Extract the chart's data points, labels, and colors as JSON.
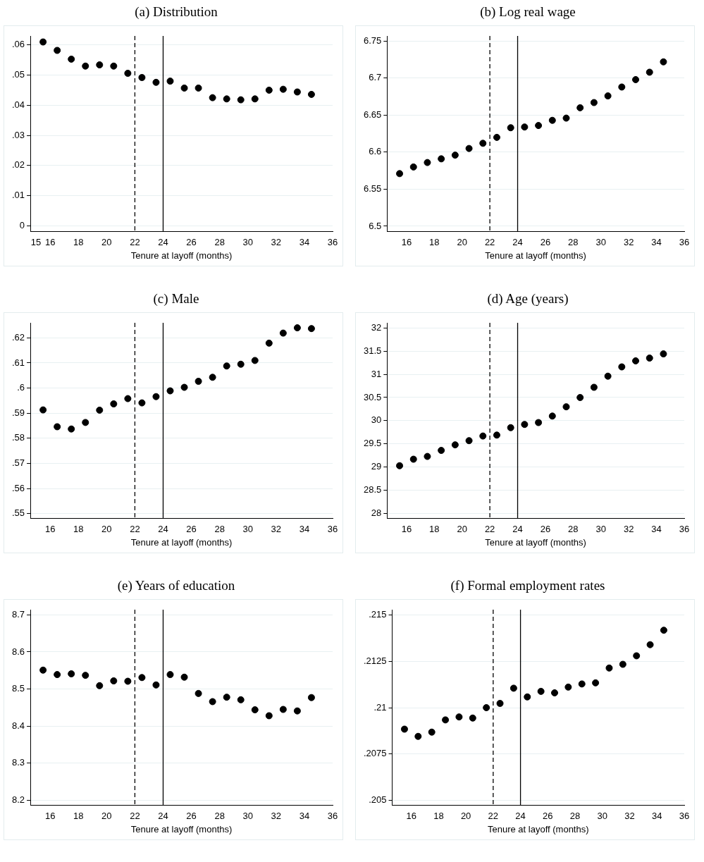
{
  "chart_data": [
    {
      "type": "scatter",
      "title": "(a) Distribution",
      "xlabel": "Tenure at layoff (months)",
      "x": [
        15.5,
        16.5,
        17.5,
        18.5,
        19.5,
        20.5,
        21.5,
        22.5,
        23.5,
        24.5,
        25.5,
        26.5,
        27.5,
        28.5,
        29.5,
        30.5,
        31.5,
        32.5,
        33.5,
        34.5
      ],
      "series": [
        {
          "color": "#000000",
          "values": [
            0.061,
            0.0582,
            0.0553,
            0.053,
            0.0534,
            0.053,
            0.0506,
            0.0492,
            0.0476,
            0.048,
            0.0457,
            0.0457,
            0.0425,
            0.0421,
            0.0418,
            0.0421,
            0.045,
            0.0453,
            0.0444,
            0.0436
          ]
        }
      ],
      "xlim": [
        14.6,
        36
      ],
      "xticks": [
        15,
        16,
        18,
        20,
        22,
        24,
        26,
        28,
        30,
        32,
        34,
        36
      ],
      "ylim": [
        -0.002,
        0.063
      ],
      "yticks": [
        {
          "value": 0,
          "label": "0"
        },
        {
          "value": 0.01,
          "label": ".01"
        },
        {
          "value": 0.02,
          "label": ".02"
        },
        {
          "value": 0.03,
          "label": ".03"
        },
        {
          "value": 0.04,
          "label": ".04"
        },
        {
          "value": 0.05,
          "label": ".05"
        },
        {
          "value": 0.06,
          "label": ".06"
        }
      ],
      "ref_lines": [
        {
          "axis": "x",
          "value": 22,
          "line_style": "dashed",
          "color": "#000000"
        },
        {
          "axis": "x",
          "value": 24,
          "line_style": "solid",
          "color": "#000000"
        }
      ],
      "grid": "y",
      "marker": "circle"
    },
    {
      "type": "scatter",
      "title": "(b) Log real wage",
      "xlabel": "Tenure at layoff (months)",
      "x": [
        15.5,
        16.5,
        17.5,
        18.5,
        19.5,
        20.5,
        21.5,
        22.5,
        23.5,
        24.5,
        25.5,
        26.5,
        27.5,
        28.5,
        29.5,
        30.5,
        31.5,
        32.5,
        33.5,
        34.5
      ],
      "series": [
        {
          "color": "#000000",
          "values": [
            6.571,
            6.58,
            6.586,
            6.591,
            6.596,
            6.605,
            6.612,
            6.62,
            6.633,
            6.634,
            6.636,
            6.643,
            6.646,
            6.66,
            6.667,
            6.676,
            6.688,
            6.698,
            6.708,
            6.722
          ]
        }
      ],
      "xlim": [
        14.6,
        36
      ],
      "xticks": [
        16,
        18,
        20,
        22,
        24,
        26,
        28,
        30,
        32,
        34,
        36
      ],
      "ylim": [
        6.4925,
        6.757
      ],
      "yticks": [
        6.5,
        6.55,
        6.6,
        6.65,
        6.7,
        6.75
      ],
      "ref_lines": [
        {
          "axis": "x",
          "value": 22,
          "line_style": "dashed",
          "color": "#000000"
        },
        {
          "axis": "x",
          "value": 24,
          "line_style": "solid",
          "color": "#000000"
        }
      ],
      "grid": "y",
      "marker": "circle"
    },
    {
      "type": "scatter",
      "title": "(c) Male",
      "xlabel": "Tenure at layoff (months)",
      "x": [
        15.5,
        16.5,
        17.5,
        18.5,
        19.5,
        20.5,
        21.5,
        22.5,
        23.5,
        24.5,
        25.5,
        26.5,
        27.5,
        28.5,
        29.5,
        30.5,
        31.5,
        32.5,
        33.5,
        34.5
      ],
      "series": [
        {
          "color": "#000000",
          "values": [
            0.5913,
            0.5846,
            0.5837,
            0.5863,
            0.5912,
            0.5937,
            0.5958,
            0.5941,
            0.5966,
            0.5989,
            0.6003,
            0.6027,
            0.6043,
            0.6088,
            0.6095,
            0.611,
            0.6179,
            0.6219,
            0.624,
            0.6237
          ]
        }
      ],
      "xlim": [
        14.6,
        36
      ],
      "xticks": [
        16,
        18,
        20,
        22,
        24,
        26,
        28,
        30,
        32,
        34,
        36
      ],
      "ylim": [
        0.548,
        0.626
      ],
      "yticks": [
        {
          "value": 0.55,
          "label": ".55"
        },
        {
          "value": 0.56,
          "label": ".56"
        },
        {
          "value": 0.57,
          "label": ".57"
        },
        {
          "value": 0.58,
          "label": ".58"
        },
        {
          "value": 0.59,
          "label": ".59"
        },
        {
          "value": 0.6,
          "label": ".6"
        },
        {
          "value": 0.61,
          "label": ".61"
        },
        {
          "value": 0.62,
          "label": ".62"
        }
      ],
      "ref_lines": [
        {
          "axis": "x",
          "value": 22,
          "line_style": "dashed",
          "color": "#000000"
        },
        {
          "axis": "x",
          "value": 24,
          "line_style": "solid",
          "color": "#000000"
        }
      ],
      "grid": "y",
      "marker": "circle"
    },
    {
      "type": "scatter",
      "title": "(d) Age (years)",
      "xlabel": "Tenure at layoff (months)",
      "x": [
        15.5,
        16.5,
        17.5,
        18.5,
        19.5,
        20.5,
        21.5,
        22.5,
        23.5,
        24.5,
        25.5,
        26.5,
        27.5,
        28.5,
        29.5,
        30.5,
        31.5,
        32.5,
        33.5,
        34.5
      ],
      "series": [
        {
          "color": "#000000",
          "values": [
            29.03,
            29.17,
            29.23,
            29.36,
            29.48,
            29.57,
            29.67,
            29.69,
            29.85,
            29.92,
            29.96,
            30.1,
            30.3,
            30.5,
            30.72,
            30.96,
            31.16,
            31.29,
            31.35,
            31.44
          ]
        }
      ],
      "xlim": [
        14.6,
        36
      ],
      "xticks": [
        16,
        18,
        20,
        22,
        24,
        26,
        28,
        30,
        32,
        34,
        36
      ],
      "ylim": [
        27.89,
        32.11
      ],
      "yticks": [
        28,
        28.5,
        29,
        29.5,
        30,
        30.5,
        31,
        31.5,
        32
      ],
      "ref_lines": [
        {
          "axis": "x",
          "value": 22,
          "line_style": "dashed",
          "color": "#000000"
        },
        {
          "axis": "x",
          "value": 24,
          "line_style": "solid",
          "color": "#000000"
        }
      ],
      "grid": "y",
      "marker": "circle"
    },
    {
      "type": "scatter",
      "title": "(e) Years of education",
      "xlabel": "Tenure at layoff (months)",
      "x": [
        15.5,
        16.5,
        17.5,
        18.5,
        19.5,
        20.5,
        21.5,
        22.5,
        23.5,
        24.5,
        25.5,
        26.5,
        27.5,
        28.5,
        29.5,
        30.5,
        31.5,
        32.5,
        33.5,
        34.5
      ],
      "series": [
        {
          "color": "#000000",
          "values": [
            8.551,
            8.539,
            8.541,
            8.537,
            8.509,
            8.522,
            8.521,
            8.531,
            8.511,
            8.539,
            8.532,
            8.488,
            8.466,
            8.478,
            8.471,
            8.444,
            8.428,
            8.445,
            8.441,
            8.477
          ]
        }
      ],
      "xlim": [
        14.6,
        36
      ],
      "xticks": [
        16,
        18,
        20,
        22,
        24,
        26,
        28,
        30,
        32,
        34,
        36
      ],
      "ylim": [
        8.186,
        8.714
      ],
      "yticks": [
        8.2,
        8.3,
        8.4,
        8.5,
        8.6,
        8.7
      ],
      "ref_lines": [
        {
          "axis": "x",
          "value": 22,
          "line_style": "dashed",
          "color": "#000000"
        },
        {
          "axis": "x",
          "value": 24,
          "line_style": "solid",
          "color": "#000000"
        }
      ],
      "grid": "y",
      "marker": "circle"
    },
    {
      "type": "scatter",
      "title": "(f) Formal employment rates",
      "xlabel": "Tenure at layoff (months)",
      "x": [
        15.5,
        16.5,
        17.5,
        18.5,
        19.5,
        20.5,
        21.5,
        22.5,
        23.5,
        24.5,
        25.5,
        26.5,
        27.5,
        28.5,
        29.5,
        30.5,
        31.5,
        32.5,
        33.5,
        34.5
      ],
      "series": [
        {
          "color": "#000000",
          "values": [
            0.20884,
            0.20845,
            0.20868,
            0.20934,
            0.2095,
            0.20944,
            0.21,
            0.21023,
            0.21105,
            0.21058,
            0.21088,
            0.2108,
            0.21111,
            0.21128,
            0.21134,
            0.21214,
            0.21234,
            0.2128,
            0.2134,
            0.21418
          ]
        }
      ],
      "xlim": [
        14.6,
        36
      ],
      "xticks": [
        16,
        18,
        20,
        22,
        24,
        26,
        28,
        30,
        32,
        34,
        36
      ],
      "ylim": [
        0.20472,
        0.21529
      ],
      "yticks": [
        {
          "value": 0.205,
          "label": ".205"
        },
        {
          "value": 0.2075,
          "label": ".2075"
        },
        {
          "value": 0.21,
          "label": ".21"
        },
        {
          "value": 0.2125,
          "label": ".2125"
        },
        {
          "value": 0.215,
          "label": ".215"
        }
      ],
      "ref_lines": [
        {
          "axis": "x",
          "value": 22,
          "line_style": "dashed",
          "color": "#000000"
        },
        {
          "axis": "x",
          "value": 24,
          "line_style": "solid",
          "color": "#000000"
        }
      ],
      "grid": "y",
      "marker": "circle"
    }
  ]
}
